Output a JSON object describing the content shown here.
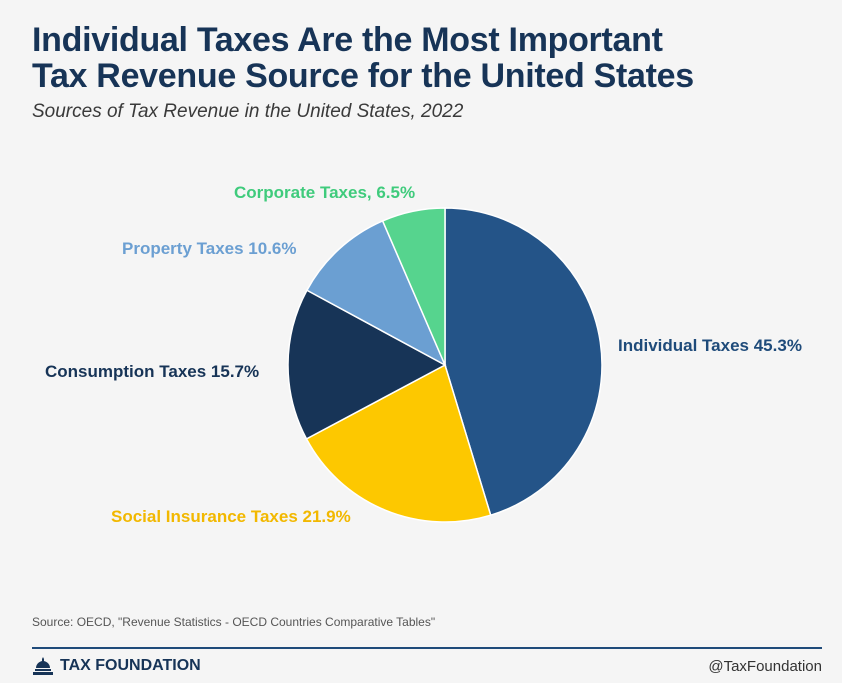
{
  "header": {
    "title_line1": "Individual Taxes Are the Most Important",
    "title_line2": "Tax Revenue Source for the United States",
    "subtitle": "Sources of Tax Revenue in the United States, 2022"
  },
  "chart_data": {
    "type": "pie",
    "title": "Sources of Tax Revenue in the United States, 2022",
    "start": "12 o'clock",
    "direction": "clockwise",
    "slices": [
      {
        "name": "Individual Taxes",
        "value": 45.3,
        "label": "Individual Taxes 45.3%",
        "color": "#245488",
        "label_color": "#1f4b7a"
      },
      {
        "name": "Social Insurance Taxes",
        "value": 21.9,
        "label": "Social Insurance Taxes 21.9%",
        "color": "#fdc800",
        "label_color": "#f2b800"
      },
      {
        "name": "Consumption Taxes",
        "value": 15.7,
        "label": "Consumption Taxes 15.7%",
        "color": "#173457",
        "label_color": "#173457"
      },
      {
        "name": "Property Taxes",
        "value": 10.6,
        "label": "Property Taxes 10.6%",
        "color": "#6b9fd2",
        "label_color": "#6b9fd2"
      },
      {
        "name": "Corporate Taxes",
        "value": 6.5,
        "label": "Corporate Taxes, 6.5%",
        "color": "#56d48e",
        "label_color": "#3fcb7c"
      }
    ]
  },
  "footer": {
    "source": "Source: OECD, \"Revenue Statistics - OECD Countries Comparative Tables\"",
    "brand": "TAX FOUNDATION",
    "handle": "@TaxFoundation"
  },
  "colors": {
    "title": "#173457",
    "rule": "#1f4b7a",
    "background": "#f5f5f5"
  }
}
